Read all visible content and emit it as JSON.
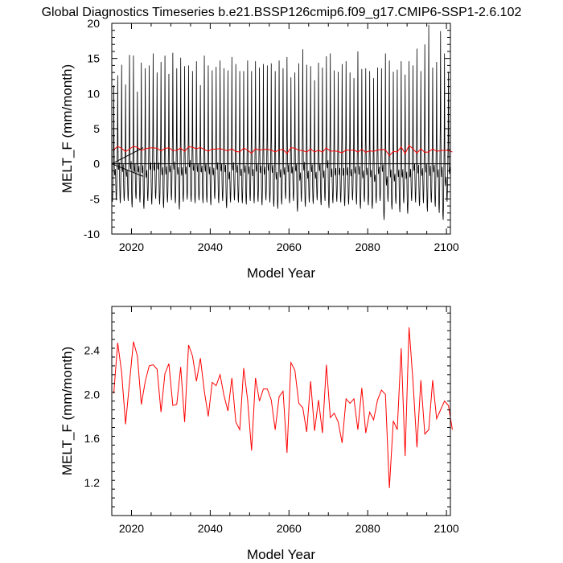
{
  "title": "Global Diagnostics Timeseries b.e21.BSSP126cmip6.f09_g17.CMIP6-SSP1-2.6.102",
  "chart_data": [
    {
      "type": "line",
      "xlabel": "Model Year",
      "ylabel": "MELT_F (mm/month)",
      "xlim": [
        2015,
        2101
      ],
      "ylim": [
        -10,
        20
      ],
      "xticks": [
        2020,
        2040,
        2060,
        2080,
        2100
      ],
      "yticks": [
        -10,
        -5,
        0,
        5,
        10,
        15,
        20
      ],
      "grid": false,
      "legend": "none",
      "series": [
        {
          "color": "#000000",
          "kind": "monthly",
          "peaks": [
            11.2,
            12.6,
            14.1,
            11.3,
            15.5,
            15.4,
            10.3,
            14.4,
            13.6,
            14.0,
            15.7,
            13.0,
            14.5,
            15.4,
            12.8,
            15.8,
            13.6,
            15.1,
            13.9,
            14.0,
            13.2,
            14.6,
            11.2,
            15.4,
            14.0,
            13.3,
            13.8,
            14.7,
            13.6,
            13.3,
            15.2,
            14.2,
            13.2,
            13.2,
            14.7,
            13.2,
            14.6,
            13.7,
            14.2,
            14.0,
            14.3,
            13.2,
            14.7,
            13.6,
            15.2,
            12.3,
            13.0,
            14.3,
            16.3,
            14.1,
            13.9,
            11.9,
            14.4,
            13.7,
            15.3,
            15.7,
            13.3,
            13.1,
            14.2,
            14.6,
            13.0,
            12.2,
            16.0,
            13.5,
            13.6,
            13.2,
            12.2,
            13.7,
            13.6,
            15.7,
            14.7,
            13.1,
            13.4,
            14.6,
            12.7,
            14.6,
            14.0,
            16.4,
            13.2,
            17.0,
            19.8,
            13.7,
            14.5,
            18.9,
            15.7,
            13.1
          ],
          "troughs": [
            -5.4,
            -5.2,
            -5.6,
            -5.3,
            -5.3,
            -6.2,
            -5.0,
            -5.5,
            -6.4,
            -5.3,
            -5.8,
            -5.0,
            -5.8,
            -6.3,
            -5.5,
            -5.2,
            -5.6,
            -6.5,
            -5.4,
            -5.1,
            -5.4,
            -5.6,
            -5.2,
            -5.6,
            -5.5,
            -5.9,
            -5.0,
            -5.6,
            -5.3,
            -6.3,
            -5.5,
            -5.2,
            -5.5,
            -5.6,
            -5.8,
            -5.3,
            -5.6,
            -5.4,
            -5.9,
            -5.2,
            -5.5,
            -6.1,
            -6.4,
            -5.8,
            -5.0,
            -5.6,
            -5.3,
            -6.8,
            -5.4,
            -6.1,
            -5.5,
            -5.7,
            -5.2,
            -5.9,
            -5.3,
            -6.3,
            -5.6,
            -5.4,
            -5.5,
            -6.0,
            -5.8,
            -5.2,
            -5.8,
            -6.4,
            -5.4,
            -5.9,
            -6.4,
            -5.6,
            -5.3,
            -8.0,
            -5.4,
            -6.5,
            -5.7,
            -6.9,
            -5.6,
            -7.1,
            -5.3,
            -5.5,
            -6.0,
            -5.6,
            -6.8,
            -5.5,
            -6.1,
            -7.0,
            -8.0,
            -5.4
          ]
        },
        {
          "color": "#ff0000",
          "kind": "annual",
          "ref": "annual_mean"
        }
      ]
    },
    {
      "type": "line",
      "xlabel": "Model Year",
      "ylabel": "MELT_F (mm/month)",
      "xlim": [
        2015,
        2101
      ],
      "ylim": [
        0.9,
        2.8
      ],
      "xticks": [
        2020,
        2040,
        2060,
        2080,
        2100
      ],
      "yticks": [
        1.2,
        1.6,
        2.0,
        2.4
      ],
      "grid": false,
      "legend": "none",
      "x_start": 2015,
      "x_step": 1,
      "annual_mean": [
        2.01,
        2.47,
        2.2,
        1.73,
        2.11,
        2.48,
        2.35,
        1.91,
        2.12,
        2.26,
        2.27,
        2.23,
        1.84,
        2.19,
        2.28,
        1.9,
        1.91,
        2.25,
        1.75,
        2.45,
        2.35,
        2.12,
        2.33,
        2.03,
        1.8,
        2.11,
        2.08,
        2.18,
        1.99,
        1.85,
        2.15,
        1.75,
        1.68,
        2.24,
        1.95,
        1.49,
        2.15,
        1.94,
        2.05,
        2.05,
        1.95,
        1.68,
        1.98,
        2.03,
        1.47,
        2.29,
        2.22,
        1.92,
        1.88,
        1.66,
        2.12,
        1.67,
        1.95,
        1.65,
        2.27,
        1.79,
        1.83,
        1.75,
        1.56,
        1.96,
        1.92,
        1.96,
        1.68,
        2.06,
        1.65,
        1.84,
        1.77,
        1.95,
        2.04,
        2.0,
        1.15,
        1.76,
        1.68,
        2.42,
        1.44,
        2.61,
        2.12,
        1.52,
        2.13,
        1.64,
        1.68,
        2.13,
        1.78,
        1.86,
        1.94,
        1.9,
        1.68
      ]
    }
  ]
}
